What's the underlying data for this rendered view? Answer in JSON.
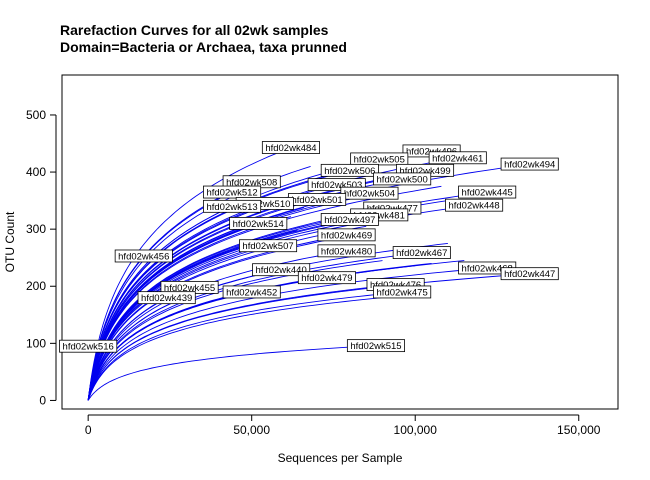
{
  "chart_data": {
    "type": "line",
    "title": "Rarefaction Curves for all 02wk samples",
    "subtitle": "Domain=Bacteria or Archaea, taxa prunned",
    "xlabel": "Sequences per Sample",
    "ylabel": "OTU Count",
    "xlim": [
      -8000,
      162000
    ],
    "ylim": [
      -15,
      570
    ],
    "x_ticks": [
      0,
      50000,
      100000,
      150000
    ],
    "x_tick_labels": [
      "0",
      "50,000",
      "100,000",
      "150,000"
    ],
    "y_ticks": [
      0,
      100,
      200,
      300,
      400,
      500
    ],
    "y_tick_labels": [
      "0",
      "100",
      "200",
      "300",
      "400",
      "500"
    ],
    "grid": false,
    "line_color": "#0000ee",
    "curve_model": "y = a * ln(1 + x / 3000) for x in [0, n]",
    "series": [
      {
        "name": "hfd02wk484",
        "n": 62000,
        "end": 443
      },
      {
        "name": "hfd02wk496",
        "n": 105000,
        "end": 437
      },
      {
        "name": "hfd02wk461",
        "n": 113000,
        "end": 425
      },
      {
        "name": "hfd02wk505",
        "n": 89000,
        "end": 423
      },
      {
        "name": "hfd02wk506",
        "n": 80000,
        "end": 403
      },
      {
        "name": "hfd02wk499",
        "n": 103000,
        "end": 403
      },
      {
        "name": "hfd02wk494",
        "n": 135000,
        "end": 414
      },
      {
        "name": "hfd02wk500",
        "n": 96000,
        "end": 388
      },
      {
        "name": "hfd02wk508",
        "n": 50000,
        "end": 383
      },
      {
        "name": "hfd02wk503",
        "n": 76000,
        "end": 378
      },
      {
        "name": "hfd02wk512",
        "n": 44000,
        "end": 365
      },
      {
        "name": "hfd02wk504",
        "n": 86000,
        "end": 363
      },
      {
        "name": "hfd02wk445",
        "n": 122000,
        "end": 365
      },
      {
        "name": "hfd02wk501",
        "n": 70000,
        "end": 352
      },
      {
        "name": "hfd02wk510",
        "n": 54000,
        "end": 345
      },
      {
        "name": "hfd02wk448",
        "n": 118000,
        "end": 342
      },
      {
        "name": "hfd02wk513",
        "n": 44000,
        "end": 340
      },
      {
        "name": "hfd02wk477",
        "n": 93000,
        "end": 337
      },
      {
        "name": "hfd02wk481",
        "n": 89000,
        "end": 325
      },
      {
        "name": "hfd02wk497",
        "n": 80000,
        "end": 317
      },
      {
        "name": "hfd02wk514",
        "n": 52000,
        "end": 310
      },
      {
        "name": "hfd02wk469",
        "n": 79000,
        "end": 290
      },
      {
        "name": "hfd02wk507",
        "n": 55000,
        "end": 271
      },
      {
        "name": "hfd02wk480",
        "n": 79000,
        "end": 262
      },
      {
        "name": "hfd02wk456",
        "n": 17000,
        "end": 253
      },
      {
        "name": "hfd02wk467",
        "n": 102000,
        "end": 259
      },
      {
        "name": "hfd02wk468",
        "n": 122000,
        "end": 232
      },
      {
        "name": "hfd02wk447",
        "n": 135000,
        "end": 222
      },
      {
        "name": "hfd02wk440",
        "n": 59000,
        "end": 229
      },
      {
        "name": "hfd02wk479",
        "n": 73000,
        "end": 215
      },
      {
        "name": "hfd02wk476",
        "n": 94000,
        "end": 203
      },
      {
        "name": "hfd02wk455",
        "n": 31000,
        "end": 198
      },
      {
        "name": "hfd02wk452",
        "n": 50000,
        "end": 190
      },
      {
        "name": "hfd02wk475",
        "n": 96000,
        "end": 190
      },
      {
        "name": "hfd02wk439",
        "n": 24000,
        "end": 180
      },
      {
        "name": "hfd02wk516",
        "n": 0,
        "end": 95
      },
      {
        "name": "hfd02wk515",
        "n": 88000,
        "end": 96
      },
      {
        "series": "unlabeled",
        "n": 68000,
        "end": 410
      },
      {
        "series": "unlabeled",
        "n": 100000,
        "end": 398
      },
      {
        "series": "unlabeled",
        "n": 108000,
        "end": 375
      },
      {
        "series": "unlabeled",
        "n": 82000,
        "end": 355
      },
      {
        "series": "unlabeled",
        "n": 110000,
        "end": 350
      },
      {
        "series": "unlabeled",
        "n": 66000,
        "end": 338
      },
      {
        "series": "unlabeled",
        "n": 98000,
        "end": 330
      },
      {
        "series": "unlabeled",
        "n": 62000,
        "end": 322
      },
      {
        "series": "unlabeled",
        "n": 85000,
        "end": 305
      },
      {
        "series": "unlabeled",
        "n": 64000,
        "end": 298
      },
      {
        "series": "unlabeled",
        "n": 75000,
        "end": 283
      },
      {
        "series": "unlabeled",
        "n": 110000,
        "end": 275
      },
      {
        "series": "unlabeled",
        "n": 90000,
        "end": 245
      },
      {
        "series": "unlabeled",
        "n": 115000,
        "end": 245
      },
      {
        "series": "unlabeled",
        "n": 100000,
        "end": 236
      },
      {
        "series": "unlabeled",
        "n": 105000,
        "end": 240
      },
      {
        "series": "unlabeled",
        "n": 97000,
        "end": 184
      }
    ]
  }
}
